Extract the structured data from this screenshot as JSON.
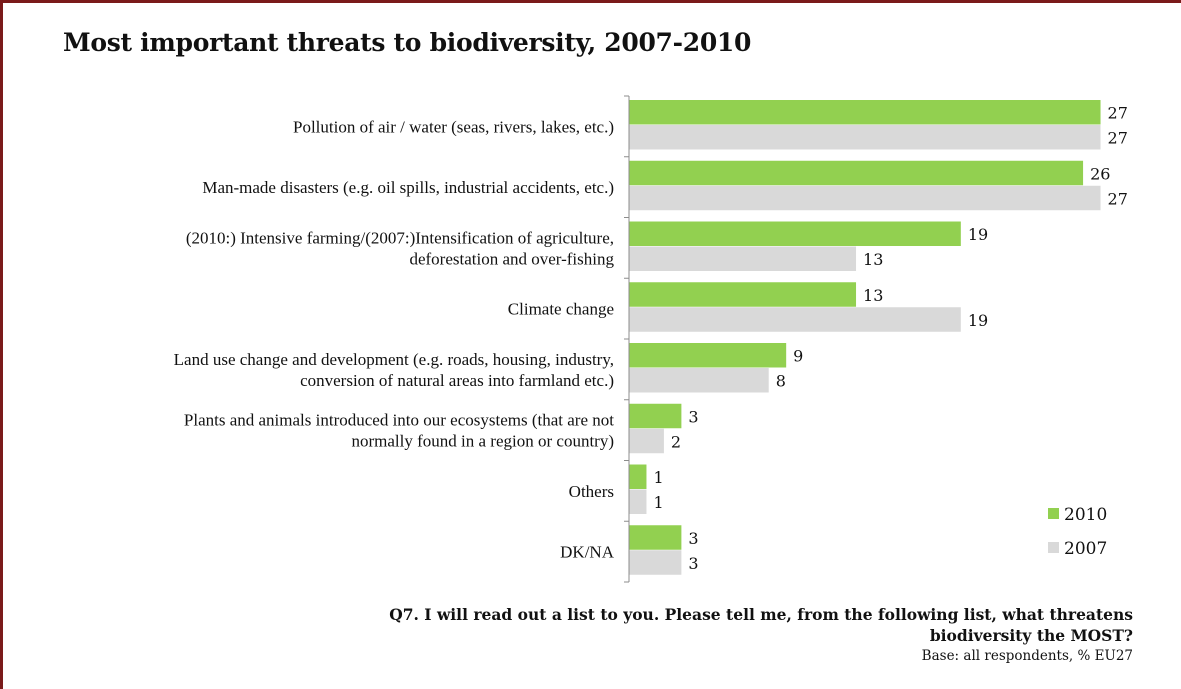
{
  "chart_data": {
    "type": "bar",
    "orientation": "horizontal",
    "title": "Most important threats to biodiversity, 2007-2010",
    "categories": [
      [
        "Pollution of air / water (seas, rivers, lakes, etc.)"
      ],
      [
        "Man-made disasters (e.g. oil spills, industrial accidents, etc.)"
      ],
      [
        "(2010:) Intensive farming/(2007:)Intensification of agriculture,",
        "deforestation and over-fishing"
      ],
      [
        "Climate change"
      ],
      [
        "Land use change and development (e.g. roads, housing, industry,",
        "conversion of natural areas into farmland etc.)"
      ],
      [
        "Plants and animals introduced into our ecosystems (that are not",
        "normally found in a region or country)"
      ],
      [
        "Others"
      ],
      [
        "DK/NA"
      ]
    ],
    "series": [
      {
        "name": "2010",
        "color": "#92d050",
        "values": [
          27,
          26,
          19,
          13,
          9,
          3,
          1,
          3
        ]
      },
      {
        "name": "2007",
        "color": "#d9d9d9",
        "values": [
          27,
          27,
          13,
          19,
          8,
          2,
          1,
          3
        ]
      }
    ],
    "xlim": [
      0,
      28
    ],
    "grid": false,
    "legend": "bottom-right"
  },
  "footer": {
    "question_lines": [
      "Q7. I will read out a list to you. Please tell me, from the following list, what threatens",
      "biodiversity the MOST?"
    ],
    "base": "Base: all respondents, % EU27"
  }
}
